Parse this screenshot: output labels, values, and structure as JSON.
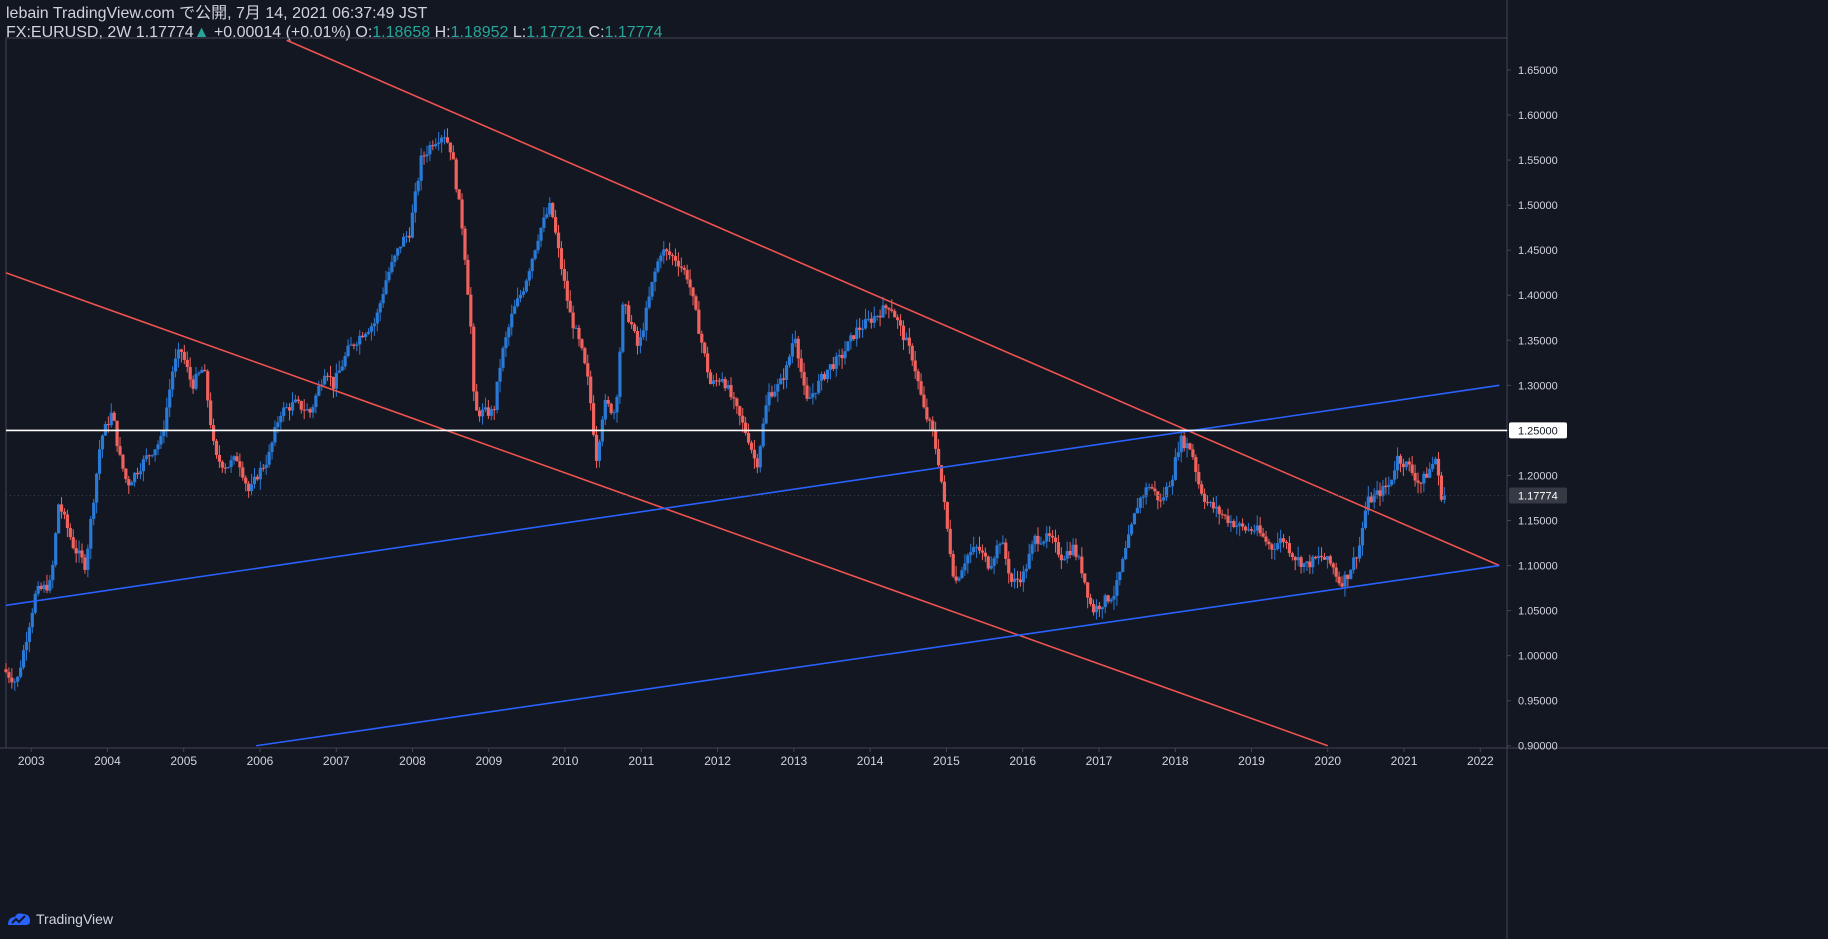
{
  "header": {
    "publisher": "lebain TradingView.com で公開, 7月 14, 2021 06:37:49 JST",
    "symbol": "FX:EURUSD, 2W",
    "last": "1.17774",
    "change_arrow": "▲",
    "change": "+0.00014 (+0.01%)",
    "o_label": "O:",
    "o": "1.18658",
    "h_label": "H:",
    "h": "1.18952",
    "l_label": "L:",
    "l": "1.17721",
    "c_label": "C:",
    "c": "1.17774"
  },
  "footer": {
    "brand": "TradingView",
    "logo_icon": "tradingview-logo-icon"
  },
  "colors": {
    "background": "#131722",
    "up": "#2962ff",
    "down": "#ef5350",
    "up_candle": "#2979d6",
    "down_candle": "#f0625d",
    "axis_text": "#d1d4dc",
    "border": "#434651",
    "horizontal_line": "#ffffff",
    "last_price_label_bg": "#363a45"
  },
  "chart_data": {
    "type": "candlestick",
    "symbol": "FX:EURUSD",
    "interval": "2W",
    "x_ticks": [
      "2003",
      "2004",
      "2005",
      "2006",
      "2007",
      "2008",
      "2009",
      "2010",
      "2011",
      "2012",
      "2013",
      "2014",
      "2015",
      "2016",
      "2017",
      "2018",
      "2019",
      "2020",
      "2021",
      "2022"
    ],
    "y_ticks": [
      "0.90000",
      "0.95000",
      "1.00000",
      "1.05000",
      "1.10000",
      "1.15000",
      "1.20000",
      "1.25000",
      "1.30000",
      "1.35000",
      "1.40000",
      "1.45000",
      "1.50000",
      "1.55000",
      "1.60000",
      "1.65000"
    ],
    "x_range": [
      2002.67,
      2022.35
    ],
    "y_range": [
      0.8975,
      1.6855
    ],
    "price_path": [
      [
        2002.67,
        0.985
      ],
      [
        2002.85,
        0.97
      ],
      [
        2003.0,
        1.03
      ],
      [
        2003.1,
        1.07
      ],
      [
        2003.3,
        1.08
      ],
      [
        2003.4,
        1.17
      ],
      [
        2003.6,
        1.12
      ],
      [
        2003.75,
        1.1
      ],
      [
        2003.95,
        1.24
      ],
      [
        2004.1,
        1.27
      ],
      [
        2004.2,
        1.22
      ],
      [
        2004.3,
        1.19
      ],
      [
        2004.55,
        1.22
      ],
      [
        2004.75,
        1.24
      ],
      [
        2004.9,
        1.32
      ],
      [
        2005.0,
        1.34
      ],
      [
        2005.15,
        1.3
      ],
      [
        2005.3,
        1.32
      ],
      [
        2005.45,
        1.22
      ],
      [
        2005.6,
        1.21
      ],
      [
        2005.75,
        1.22
      ],
      [
        2005.9,
        1.18
      ],
      [
        2006.0,
        1.2
      ],
      [
        2006.15,
        1.22
      ],
      [
        2006.3,
        1.27
      ],
      [
        2006.5,
        1.28
      ],
      [
        2006.7,
        1.27
      ],
      [
        2006.9,
        1.32
      ],
      [
        2007.0,
        1.3
      ],
      [
        2007.2,
        1.34
      ],
      [
        2007.4,
        1.36
      ],
      [
        2007.55,
        1.37
      ],
      [
        2007.7,
        1.42
      ],
      [
        2007.9,
        1.46
      ],
      [
        2008.0,
        1.47
      ],
      [
        2008.15,
        1.55
      ],
      [
        2008.3,
        1.57
      ],
      [
        2008.45,
        1.58
      ],
      [
        2008.55,
        1.56
      ],
      [
        2008.7,
        1.47
      ],
      [
        2008.8,
        1.37
      ],
      [
        2008.85,
        1.27
      ],
      [
        2008.95,
        1.27
      ],
      [
        2009.1,
        1.27
      ],
      [
        2009.2,
        1.33
      ],
      [
        2009.35,
        1.38
      ],
      [
        2009.5,
        1.41
      ],
      [
        2009.7,
        1.47
      ],
      [
        2009.85,
        1.5
      ],
      [
        2009.95,
        1.45
      ],
      [
        2010.1,
        1.38
      ],
      [
        2010.25,
        1.34
      ],
      [
        2010.35,
        1.3
      ],
      [
        2010.45,
        1.22
      ],
      [
        2010.55,
        1.28
      ],
      [
        2010.7,
        1.27
      ],
      [
        2010.8,
        1.39
      ],
      [
        2010.9,
        1.37
      ],
      [
        2011.0,
        1.34
      ],
      [
        2011.2,
        1.42
      ],
      [
        2011.3,
        1.45
      ],
      [
        2011.5,
        1.44
      ],
      [
        2011.65,
        1.42
      ],
      [
        2011.75,
        1.38
      ],
      [
        2011.95,
        1.3
      ],
      [
        2012.1,
        1.31
      ],
      [
        2012.3,
        1.27
      ],
      [
        2012.45,
        1.24
      ],
      [
        2012.55,
        1.21
      ],
      [
        2012.7,
        1.29
      ],
      [
        2012.85,
        1.3
      ],
      [
        2012.95,
        1.32
      ],
      [
        2013.05,
        1.36
      ],
      [
        2013.2,
        1.28
      ],
      [
        2013.35,
        1.3
      ],
      [
        2013.5,
        1.32
      ],
      [
        2013.65,
        1.33
      ],
      [
        2013.85,
        1.36
      ],
      [
        2014.0,
        1.37
      ],
      [
        2014.15,
        1.38
      ],
      [
        2014.3,
        1.39
      ],
      [
        2014.45,
        1.36
      ],
      [
        2014.6,
        1.33
      ],
      [
        2014.75,
        1.27
      ],
      [
        2014.85,
        1.25
      ],
      [
        2014.95,
        1.21
      ],
      [
        2015.05,
        1.14
      ],
      [
        2015.15,
        1.08
      ],
      [
        2015.3,
        1.11
      ],
      [
        2015.45,
        1.12
      ],
      [
        2015.6,
        1.1
      ],
      [
        2015.75,
        1.13
      ],
      [
        2015.9,
        1.08
      ],
      [
        2016.05,
        1.09
      ],
      [
        2016.2,
        1.13
      ],
      [
        2016.4,
        1.13
      ],
      [
        2016.55,
        1.11
      ],
      [
        2016.7,
        1.12
      ],
      [
        2016.8,
        1.1
      ],
      [
        2016.95,
        1.05
      ],
      [
        2017.1,
        1.06
      ],
      [
        2017.25,
        1.07
      ],
      [
        2017.4,
        1.12
      ],
      [
        2017.55,
        1.17
      ],
      [
        2017.7,
        1.19
      ],
      [
        2017.85,
        1.17
      ],
      [
        2018.0,
        1.2
      ],
      [
        2018.1,
        1.24
      ],
      [
        2018.25,
        1.23
      ],
      [
        2018.35,
        1.19
      ],
      [
        2018.45,
        1.17
      ],
      [
        2018.6,
        1.16
      ],
      [
        2018.75,
        1.15
      ],
      [
        2018.95,
        1.14
      ],
      [
        2019.1,
        1.14
      ],
      [
        2019.3,
        1.12
      ],
      [
        2019.45,
        1.13
      ],
      [
        2019.6,
        1.11
      ],
      [
        2019.75,
        1.1
      ],
      [
        2019.95,
        1.11
      ],
      [
        2020.1,
        1.1
      ],
      [
        2020.2,
        1.08
      ],
      [
        2020.3,
        1.09
      ],
      [
        2020.45,
        1.12
      ],
      [
        2020.55,
        1.17
      ],
      [
        2020.7,
        1.18
      ],
      [
        2020.85,
        1.19
      ],
      [
        2020.95,
        1.22
      ],
      [
        2021.1,
        1.21
      ],
      [
        2021.25,
        1.19
      ],
      [
        2021.4,
        1.21
      ],
      [
        2021.45,
        1.22
      ],
      [
        2021.5,
        1.19
      ],
      [
        2021.53,
        1.178
      ]
    ],
    "trendlines": [
      {
        "name": "upper-descending",
        "color": "down",
        "points": [
          [
            2006.35,
            1.683
          ],
          [
            2022.25,
            1.1
          ]
        ]
      },
      {
        "name": "lower-descending",
        "color": "down",
        "points": [
          [
            2002.6,
            1.427
          ],
          [
            2020.0,
            0.9
          ]
        ]
      },
      {
        "name": "upper-ascending",
        "color": "up",
        "points": [
          [
            2002.6,
            1.055
          ],
          [
            2022.25,
            1.3
          ]
        ]
      },
      {
        "name": "lower-ascending",
        "color": "up",
        "points": [
          [
            2005.95,
            0.9
          ],
          [
            2022.25,
            1.1
          ]
        ]
      }
    ],
    "horizontal_lines": [
      {
        "name": "resistance-1.25",
        "value": 1.25,
        "label": "1.25000"
      }
    ],
    "last_price": {
      "value": 1.17774,
      "label": "1.17774"
    }
  }
}
